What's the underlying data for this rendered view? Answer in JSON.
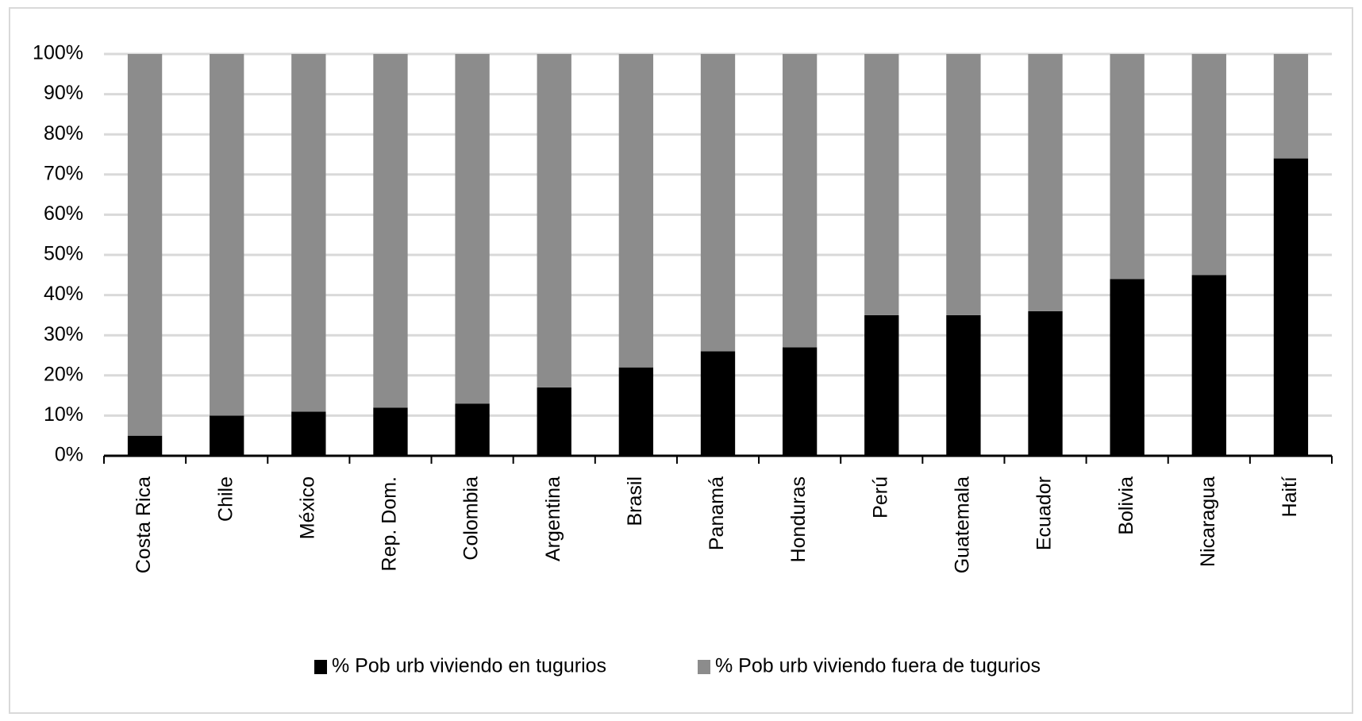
{
  "chart_data": {
    "type": "stacked_bar",
    "categories": [
      "Costa Rica",
      "Chile",
      "México",
      "Rep. Dom.",
      "Colombia",
      "Argentina",
      "Brasil",
      "Panamá",
      "Honduras",
      "Perú",
      "Guatemala",
      "Ecuador",
      "Bolivia",
      "Nicaragua",
      "Haití"
    ],
    "series": [
      {
        "name": "% Pob urb viviendo en tugurios",
        "color": "#000000",
        "values": [
          5,
          10,
          11,
          12,
          13,
          17,
          22,
          26,
          27,
          35,
          35,
          36,
          44,
          45,
          74
        ]
      },
      {
        "name": "% Pob urb viviendo fuera de tugurios",
        "color": "#8c8c8c",
        "values": [
          95,
          90,
          89,
          88,
          87,
          83,
          78,
          74,
          73,
          65,
          65,
          64,
          56,
          55,
          26
        ]
      }
    ],
    "ylim": [
      0,
      100
    ],
    "yticks": [
      {
        "value": 0,
        "label": "0%"
      },
      {
        "value": 10,
        "label": "10%"
      },
      {
        "value": 20,
        "label": "20%"
      },
      {
        "value": 30,
        "label": "30%"
      },
      {
        "value": 40,
        "label": "40%"
      },
      {
        "value": 50,
        "label": "50%"
      },
      {
        "value": 60,
        "label": "60%"
      },
      {
        "value": 70,
        "label": "70%"
      },
      {
        "value": 80,
        "label": "80%"
      },
      {
        "value": 90,
        "label": "90%"
      },
      {
        "value": 100,
        "label": "100%"
      }
    ],
    "grid": true,
    "legend": "bottom"
  }
}
